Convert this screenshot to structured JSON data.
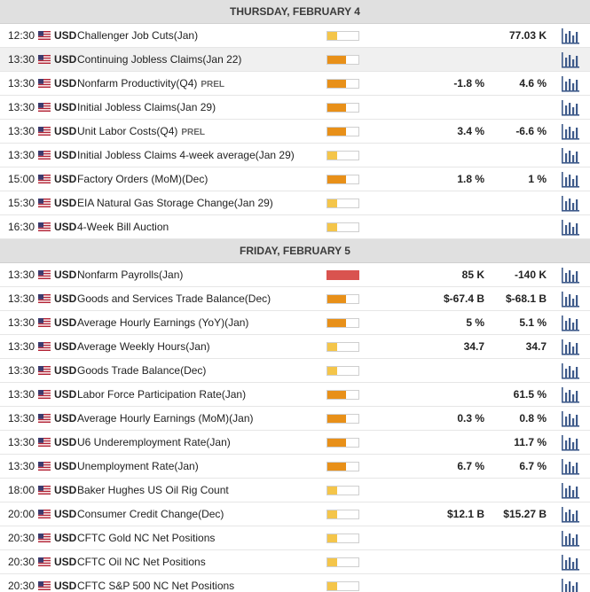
{
  "colors": {
    "header_bg": "#e0e0e0",
    "impact_low": "#f4c54a",
    "impact_medium": "#e89019",
    "impact_high": "#d9534f",
    "chart_icon": "#3e5a8a"
  },
  "days": [
    {
      "title": "THURSDAY, FEBRUARY 4",
      "events": [
        {
          "time": "12:30",
          "flag": "us-flag-icon",
          "currency": "USD",
          "name": "Challenger Job Cuts(Jan)",
          "prel": "",
          "impact": "low",
          "actual": "",
          "previous": "77.03 K",
          "highlight": false
        },
        {
          "time": "13:30",
          "flag": "us-flag-icon",
          "currency": "USD",
          "name": "Continuing Jobless Claims(Jan 22)",
          "prel": "",
          "impact": "medium",
          "actual": "",
          "previous": "",
          "highlight": true
        },
        {
          "time": "13:30",
          "flag": "us-flag-icon",
          "currency": "USD",
          "name": "Nonfarm Productivity(Q4)",
          "prel": "PREL",
          "impact": "medium",
          "actual": "-1.8 %",
          "previous": "4.6 %",
          "highlight": false
        },
        {
          "time": "13:30",
          "flag": "us-flag-icon",
          "currency": "USD",
          "name": "Initial Jobless Claims(Jan 29)",
          "prel": "",
          "impact": "medium",
          "actual": "",
          "previous": "",
          "highlight": false
        },
        {
          "time": "13:30",
          "flag": "us-flag-icon",
          "currency": "USD",
          "name": "Unit Labor Costs(Q4)",
          "prel": "PREL",
          "impact": "medium",
          "actual": "3.4 %",
          "previous": "-6.6 %",
          "highlight": false
        },
        {
          "time": "13:30",
          "flag": "us-flag-icon",
          "currency": "USD",
          "name": "Initial Jobless Claims 4-week average(Jan 29)",
          "prel": "",
          "impact": "low",
          "actual": "",
          "previous": "",
          "highlight": false
        },
        {
          "time": "15:00",
          "flag": "us-flag-icon",
          "currency": "USD",
          "name": "Factory Orders (MoM)(Dec)",
          "prel": "",
          "impact": "medium",
          "actual": "1.8 %",
          "previous": "1 %",
          "highlight": false
        },
        {
          "time": "15:30",
          "flag": "us-flag-icon",
          "currency": "USD",
          "name": "EIA Natural Gas Storage Change(Jan 29)",
          "prel": "",
          "impact": "low",
          "actual": "",
          "previous": "",
          "highlight": false
        },
        {
          "time": "16:30",
          "flag": "us-flag-icon",
          "currency": "USD",
          "name": "4-Week Bill Auction",
          "prel": "",
          "impact": "low",
          "actual": "",
          "previous": "",
          "highlight": false
        }
      ]
    },
    {
      "title": "FRIDAY, FEBRUARY 5",
      "events": [
        {
          "time": "13:30",
          "flag": "us-flag-icon",
          "currency": "USD",
          "name": "Nonfarm Payrolls(Jan)",
          "prel": "",
          "impact": "high",
          "actual": "85 K",
          "previous": "-140 K",
          "highlight": false
        },
        {
          "time": "13:30",
          "flag": "us-flag-icon",
          "currency": "USD",
          "name": "Goods and Services Trade Balance(Dec)",
          "prel": "",
          "impact": "medium",
          "actual": "$-67.4 B",
          "previous": "$-68.1 B",
          "highlight": false
        },
        {
          "time": "13:30",
          "flag": "us-flag-icon",
          "currency": "USD",
          "name": "Average Hourly Earnings (YoY)(Jan)",
          "prel": "",
          "impact": "medium",
          "actual": "5 %",
          "previous": "5.1 %",
          "highlight": false
        },
        {
          "time": "13:30",
          "flag": "us-flag-icon",
          "currency": "USD",
          "name": "Average Weekly Hours(Jan)",
          "prel": "",
          "impact": "low",
          "actual": "34.7",
          "previous": "34.7",
          "highlight": false
        },
        {
          "time": "13:30",
          "flag": "us-flag-icon",
          "currency": "USD",
          "name": "Goods Trade Balance(Dec)",
          "prel": "",
          "impact": "low",
          "actual": "",
          "previous": "",
          "highlight": false
        },
        {
          "time": "13:30",
          "flag": "us-flag-icon",
          "currency": "USD",
          "name": "Labor Force Participation Rate(Jan)",
          "prel": "",
          "impact": "medium",
          "actual": "",
          "previous": "61.5 %",
          "highlight": false
        },
        {
          "time": "13:30",
          "flag": "us-flag-icon",
          "currency": "USD",
          "name": "Average Hourly Earnings (MoM)(Jan)",
          "prel": "",
          "impact": "medium",
          "actual": "0.3 %",
          "previous": "0.8 %",
          "highlight": false
        },
        {
          "time": "13:30",
          "flag": "us-flag-icon",
          "currency": "USD",
          "name": "U6 Underemployment Rate(Jan)",
          "prel": "",
          "impact": "medium",
          "actual": "",
          "previous": "11.7 %",
          "highlight": false
        },
        {
          "time": "13:30",
          "flag": "us-flag-icon",
          "currency": "USD",
          "name": "Unemployment Rate(Jan)",
          "prel": "",
          "impact": "medium",
          "actual": "6.7 %",
          "previous": "6.7 %",
          "highlight": false
        },
        {
          "time": "18:00",
          "flag": "us-flag-icon",
          "currency": "USD",
          "name": "Baker Hughes US Oil Rig Count",
          "prel": "",
          "impact": "low",
          "actual": "",
          "previous": "",
          "highlight": false
        },
        {
          "time": "20:00",
          "flag": "us-flag-icon",
          "currency": "USD",
          "name": "Consumer Credit Change(Dec)",
          "prel": "",
          "impact": "low",
          "actual": "$12.1 B",
          "previous": "$15.27 B",
          "highlight": false
        },
        {
          "time": "20:30",
          "flag": "us-flag-icon",
          "currency": "USD",
          "name": "CFTC Gold NC Net Positions",
          "prel": "",
          "impact": "low",
          "actual": "",
          "previous": "",
          "highlight": false
        },
        {
          "time": "20:30",
          "flag": "us-flag-icon",
          "currency": "USD",
          "name": "CFTC Oil NC Net Positions",
          "prel": "",
          "impact": "low",
          "actual": "",
          "previous": "",
          "highlight": false
        },
        {
          "time": "20:30",
          "flag": "us-flag-icon",
          "currency": "USD",
          "name": "CFTC S&P 500 NC Net Positions",
          "prel": "",
          "impact": "low",
          "actual": "",
          "previous": "",
          "highlight": false
        }
      ]
    }
  ]
}
